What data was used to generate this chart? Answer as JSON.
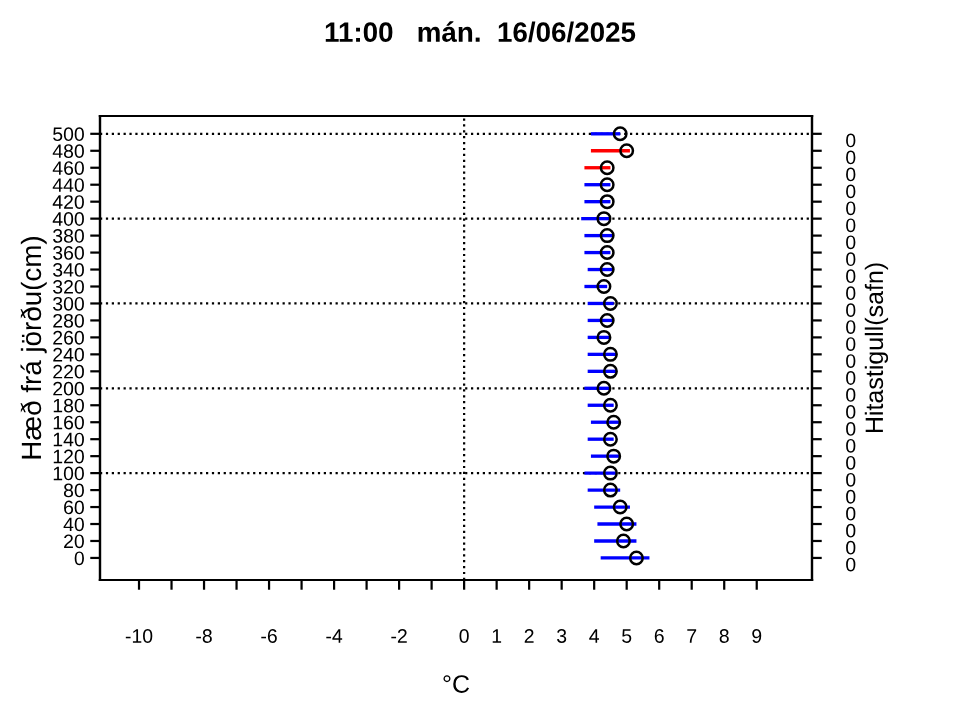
{
  "chart_data": {
    "type": "scatter",
    "title": "11:00   mán.  16/06/2025",
    "xlabel": "°C",
    "ylabel": "Hæð frá jörðu(cm)",
    "y2label": "Hitastigull(safn)",
    "marker": "circle",
    "series": [
      {
        "color": "#000000",
        "x": [
          5.3,
          4.9,
          5.0,
          4.8,
          4.5,
          4.5,
          4.6,
          4.5,
          4.6,
          4.5,
          4.3,
          4.5,
          4.5,
          4.3,
          4.4,
          4.5,
          4.3,
          4.4,
          4.4,
          4.4,
          4.3,
          4.4,
          4.4,
          4.4,
          5.0,
          4.8
        ],
        "values": [
          0,
          20,
          40,
          60,
          80,
          100,
          120,
          140,
          160,
          180,
          200,
          220,
          240,
          260,
          280,
          300,
          320,
          340,
          360,
          380,
          400,
          420,
          440,
          460,
          480,
          500
        ]
      },
      {
        "type": "line",
        "marker": "none",
        "color": "#0000ff",
        "x": [
          4.2,
          5.7
        ],
        "values": [
          0,
          0
        ]
      },
      {
        "type": "line",
        "marker": "none",
        "color": "#0000ff",
        "x": [
          4.0,
          5.3
        ],
        "values": [
          20,
          20
        ]
      },
      {
        "type": "line",
        "marker": "none",
        "color": "#0000ff",
        "x": [
          4.1,
          5.3
        ],
        "values": [
          40,
          40
        ]
      },
      {
        "type": "line",
        "marker": "none",
        "color": "#0000ff",
        "x": [
          4.0,
          5.1
        ],
        "values": [
          60,
          60
        ]
      },
      {
        "type": "line",
        "marker": "none",
        "color": "#0000ff",
        "x": [
          3.8,
          4.8
        ],
        "values": [
          80,
          80
        ]
      },
      {
        "type": "line",
        "marker": "none",
        "color": "#0000ff",
        "x": [
          3.7,
          4.7
        ],
        "values": [
          100,
          100
        ]
      },
      {
        "type": "line",
        "marker": "none",
        "color": "#0000ff",
        "x": [
          3.9,
          4.8
        ],
        "values": [
          120,
          120
        ]
      },
      {
        "type": "line",
        "marker": "none",
        "color": "#0000ff",
        "x": [
          3.8,
          4.6
        ],
        "values": [
          140,
          140
        ]
      },
      {
        "type": "line",
        "marker": "none",
        "color": "#0000ff",
        "x": [
          3.9,
          4.8
        ],
        "values": [
          160,
          160
        ]
      },
      {
        "type": "line",
        "marker": "none",
        "color": "#0000ff",
        "x": [
          3.8,
          4.6
        ],
        "values": [
          180,
          180
        ]
      },
      {
        "type": "line",
        "marker": "none",
        "color": "#0000ff",
        "x": [
          3.7,
          4.5
        ],
        "values": [
          200,
          200
        ]
      },
      {
        "type": "line",
        "marker": "none",
        "color": "#0000ff",
        "x": [
          3.8,
          4.7
        ],
        "values": [
          220,
          220
        ]
      },
      {
        "type": "line",
        "marker": "none",
        "color": "#0000ff",
        "x": [
          3.8,
          4.7
        ],
        "values": [
          240,
          240
        ]
      },
      {
        "type": "line",
        "marker": "none",
        "color": "#0000ff",
        "x": [
          3.8,
          4.5
        ],
        "values": [
          260,
          260
        ]
      },
      {
        "type": "line",
        "marker": "none",
        "color": "#0000ff",
        "x": [
          3.8,
          4.6
        ],
        "values": [
          280,
          280
        ]
      },
      {
        "type": "line",
        "marker": "none",
        "color": "#0000ff",
        "x": [
          3.8,
          4.6
        ],
        "values": [
          300,
          300
        ]
      },
      {
        "type": "line",
        "marker": "none",
        "color": "#0000ff",
        "x": [
          3.7,
          4.4
        ],
        "values": [
          320,
          320
        ]
      },
      {
        "type": "line",
        "marker": "none",
        "color": "#0000ff",
        "x": [
          3.8,
          4.6
        ],
        "values": [
          340,
          340
        ]
      },
      {
        "type": "line",
        "marker": "none",
        "color": "#0000ff",
        "x": [
          3.7,
          4.5
        ],
        "values": [
          360,
          360
        ]
      },
      {
        "type": "line",
        "marker": "none",
        "color": "#0000ff",
        "x": [
          3.7,
          4.6
        ],
        "values": [
          380,
          380
        ]
      },
      {
        "type": "line",
        "marker": "none",
        "color": "#0000ff",
        "x": [
          3.6,
          4.5
        ],
        "values": [
          400,
          400
        ]
      },
      {
        "type": "line",
        "marker": "none",
        "color": "#0000ff",
        "x": [
          3.7,
          4.5
        ],
        "values": [
          420,
          420
        ]
      },
      {
        "type": "line",
        "marker": "none",
        "color": "#0000ff",
        "x": [
          3.7,
          4.5
        ],
        "values": [
          440,
          440
        ]
      },
      {
        "type": "line",
        "marker": "none",
        "color": "#ff0000",
        "x": [
          3.7,
          4.5
        ],
        "values": [
          460,
          460
        ]
      },
      {
        "type": "line",
        "marker": "none",
        "color": "#ff0000",
        "x": [
          3.9,
          5.1
        ],
        "values": [
          480,
          480
        ]
      },
      {
        "type": "line",
        "marker": "none",
        "color": "#0000ff",
        "x": [
          3.9,
          4.8
        ],
        "values": [
          500,
          500
        ]
      }
    ],
    "xlim": [
      -11.2,
      10.7
    ],
    "ylim": [
      -26,
      521
    ],
    "xticks": [
      -10,
      {
        "value": -9,
        "label": null
      },
      -8,
      {
        "value": -7,
        "label": null
      },
      -6,
      {
        "value": -5,
        "label": null
      },
      -4,
      {
        "value": -3,
        "label": null
      },
      -2,
      {
        "value": -1,
        "label": null
      },
      0,
      1,
      2,
      3,
      4,
      5,
      6,
      7,
      8,
      9
    ],
    "yticks": [
      0,
      20,
      40,
      60,
      80,
      100,
      120,
      140,
      160,
      180,
      200,
      220,
      240,
      260,
      280,
      300,
      320,
      340,
      360,
      380,
      400,
      420,
      440,
      460,
      480,
      500
    ],
    "annotations": [
      "0",
      "0",
      "0",
      "0",
      "0",
      "0",
      "0",
      "0",
      "0",
      "0",
      "0",
      "0",
      "0",
      "0",
      "0",
      "0",
      "0",
      "0",
      "0",
      "0",
      "0",
      "0",
      "0",
      "0",
      "0",
      "0"
    ],
    "ref_lines": [
      {
        "axis": "x",
        "value": 0,
        "line_style": "dotted",
        "color": "#000000"
      },
      {
        "axis": "y",
        "value": 100,
        "line_style": "dotted",
        "color": "#000000"
      },
      {
        "axis": "y",
        "value": 200,
        "line_style": "dotted",
        "color": "#000000"
      },
      {
        "axis": "y",
        "value": 300,
        "line_style": "dotted",
        "color": "#000000"
      },
      {
        "axis": "y",
        "value": 400,
        "line_style": "dotted",
        "color": "#000000"
      },
      {
        "axis": "y",
        "value": 500,
        "line_style": "dotted",
        "color": "#000000"
      }
    ]
  }
}
